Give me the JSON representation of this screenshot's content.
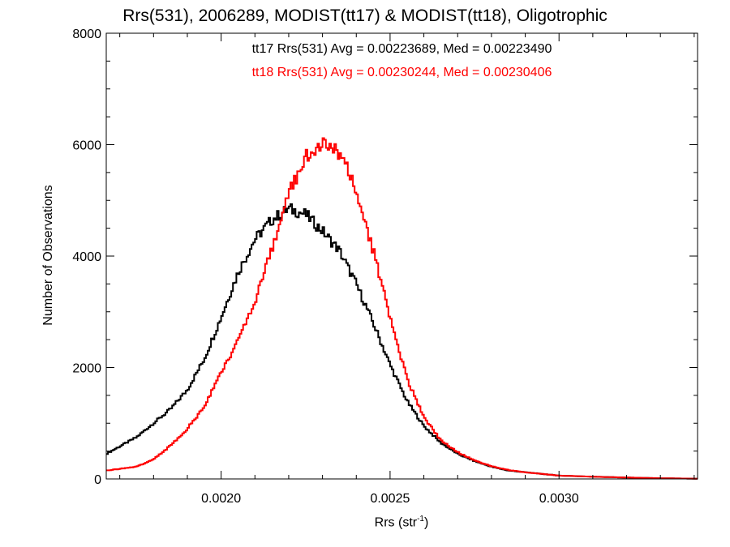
{
  "chart_data": {
    "type": "line",
    "title": "Rrs(531), 2006289, MODIST(tt17) & MODIST(tt18), Oligotrophic",
    "xlabel_main": "Rrs (str",
    "xlabel_sup": "-1",
    "xlabel_tail": ")",
    "ylabel": "Number of Observations",
    "xlim": [
      0.00166,
      0.00341
    ],
    "ylim": [
      0,
      8000
    ],
    "x_ticks": [
      0.002,
      0.0025,
      0.003
    ],
    "x_tick_labels": [
      "0.0020",
      "0.0025",
      "0.0030"
    ],
    "y_ticks": [
      0,
      2000,
      4000,
      6000,
      8000
    ],
    "y_tick_labels": [
      "0",
      "2000",
      "4000",
      "6000",
      "8000"
    ],
    "grid": false,
    "annotations": [
      {
        "text": "tt17 Rrs(531) Avg = 0.00223689, Med = 0.00223490",
        "color": "#000000"
      },
      {
        "text": "tt18 Rrs(531) Avg = 0.00230244, Med = 0.00230406",
        "color": "#ff0000"
      }
    ],
    "x": [
      0.00166,
      0.00175,
      0.0018,
      0.00185,
      0.0019,
      0.00195,
      0.002,
      0.00205,
      0.0021,
      0.00215,
      0.0022,
      0.00225,
      0.0023,
      0.00235,
      0.0024,
      0.00245,
      0.0025,
      0.00255,
      0.0026,
      0.00265,
      0.0027,
      0.00275,
      0.0028,
      0.00285,
      0.0029,
      0.00295,
      0.003,
      0.0031,
      0.0032,
      0.0033,
      0.0034
    ],
    "series": [
      {
        "color": "#000000",
        "values": [
          450,
          750,
          1000,
          1250,
          1600,
          2150,
          2900,
          3700,
          4300,
          4650,
          4850,
          4750,
          4450,
          4100,
          3500,
          2800,
          2050,
          1400,
          950,
          650,
          450,
          320,
          220,
          150,
          120,
          90,
          60,
          40,
          25,
          12,
          5
        ]
      },
      {
        "color": "#ff0000",
        "values": [
          150,
          220,
          350,
          600,
          900,
          1300,
          1900,
          2500,
          3200,
          4100,
          5100,
          5800,
          6000,
          5850,
          5200,
          4100,
          2900,
          1800,
          1100,
          700,
          480,
          330,
          230,
          160,
          120,
          90,
          60,
          40,
          25,
          12,
          5
        ]
      }
    ]
  }
}
